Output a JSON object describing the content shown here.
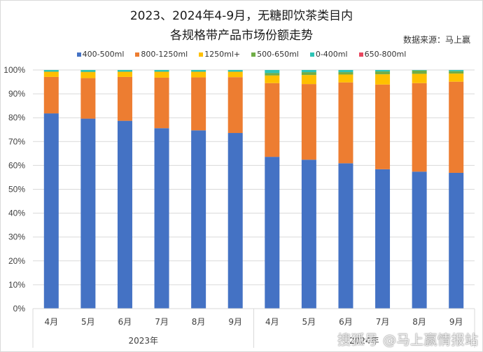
{
  "chart_data": {
    "type": "bar",
    "stacked": true,
    "percent_stacked": true,
    "title": "2023、2024年4-9月，无糖即饮茶类目内",
    "subtitle": "各规格带产品市场份额走势",
    "source_note": "数据来源：马上赢",
    "xlabel": "",
    "ylabel": "",
    "ylim": [
      0,
      100
    ],
    "yticks": [
      "0%",
      "10%",
      "20%",
      "30%",
      "40%",
      "50%",
      "60%",
      "70%",
      "80%",
      "90%",
      "100%"
    ],
    "grid": true,
    "legend_position": "top",
    "groups": [
      {
        "label": "2023年",
        "categories": [
          "4月",
          "5月",
          "6月",
          "7月",
          "8月",
          "9月"
        ]
      },
      {
        "label": "2024年",
        "categories": [
          "4月",
          "5月",
          "6月",
          "7月",
          "8月",
          "9月"
        ]
      }
    ],
    "categories": [
      "2023-4月",
      "2023-5月",
      "2023-6月",
      "2023-7月",
      "2023-8月",
      "2023-9月",
      "2024-4月",
      "2024-5月",
      "2024-6月",
      "2024-7月",
      "2024-8月",
      "2024-9月"
    ],
    "series": [
      {
        "name": "400-500ml",
        "color": "#4472c4",
        "values": [
          81.8,
          79.6,
          78.7,
          75.6,
          74.7,
          73.6,
          63.6,
          62.4,
          60.9,
          58.4,
          57.4,
          56.9
        ]
      },
      {
        "name": "800-1250ml",
        "color": "#ed7d31",
        "values": [
          15.3,
          17.0,
          18.4,
          21.2,
          22.2,
          23.4,
          30.9,
          31.7,
          33.9,
          35.5,
          37.1,
          38.2
        ]
      },
      {
        "name": "1250ml+",
        "color": "#ffc000",
        "values": [
          2.1,
          2.5,
          2.1,
          2.4,
          2.3,
          2.2,
          3.2,
          3.8,
          3.3,
          4.3,
          3.9,
          3.4
        ]
      },
      {
        "name": "500-650ml",
        "color": "#70ad47",
        "values": [
          0.2,
          0.2,
          0.2,
          0.2,
          0.2,
          0.2,
          1.0,
          1.2,
          1.0,
          1.2,
          1.4,
          1.0
        ]
      },
      {
        "name": "0-400ml",
        "color": "#2ec4b6",
        "values": [
          0.6,
          0.7,
          0.6,
          0.6,
          0.6,
          0.6,
          1.3,
          0.9,
          0.9,
          0.6,
          0.2,
          0.5
        ]
      },
      {
        "name": "650-800ml",
        "color": "#e8475f",
        "values": [
          0,
          0,
          0,
          0,
          0,
          0,
          0,
          0,
          0,
          0,
          0,
          0
        ]
      }
    ]
  },
  "watermark": "搜狐号 @马上赢情报站"
}
